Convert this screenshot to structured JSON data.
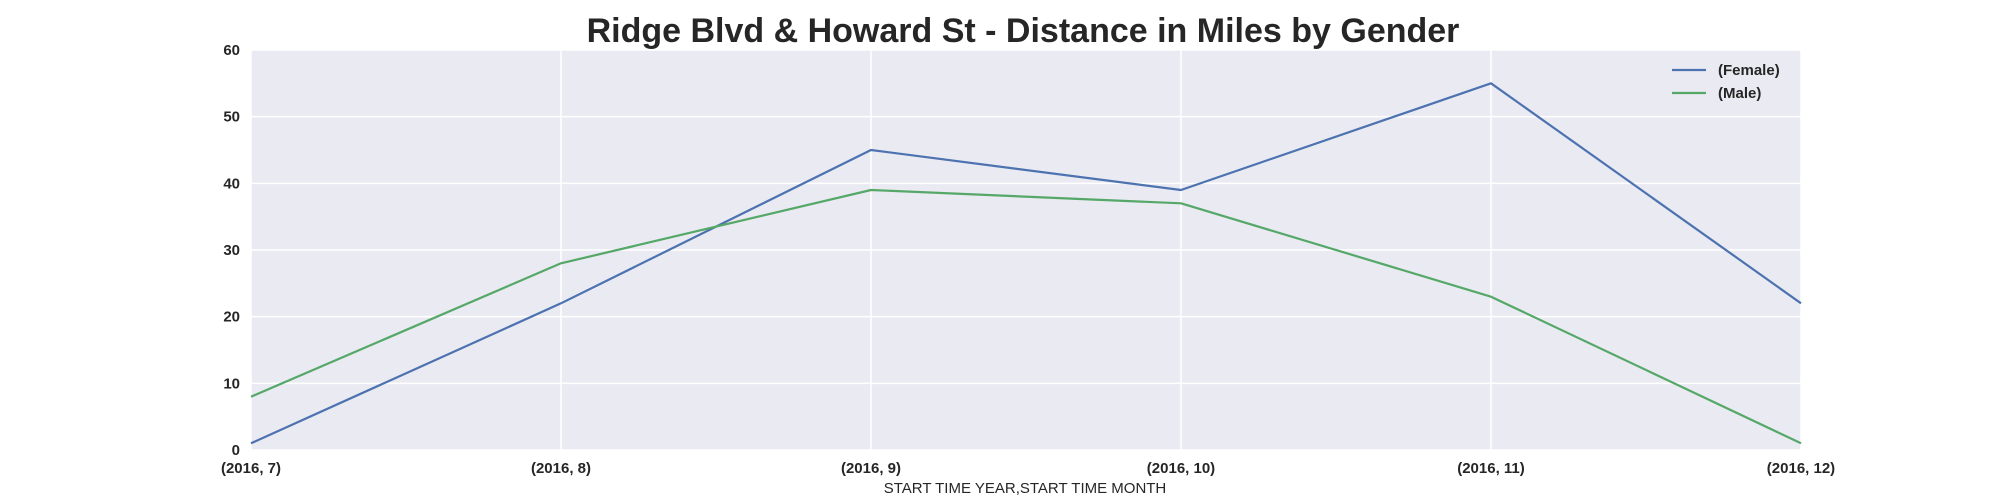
{
  "chart_data": {
    "type": "line",
    "title": "Ridge Blvd & Howard St - Distance in Miles by Gender",
    "xlabel": "START TIME YEAR,START TIME MONTH",
    "ylabel": "",
    "categories": [
      "(2016, 7)",
      "(2016, 8)",
      "(2016, 9)",
      "(2016, 10)",
      "(2016, 11)",
      "(2016, 12)"
    ],
    "ylim": [
      0,
      60
    ],
    "yticks": [
      0,
      10,
      20,
      30,
      40,
      50,
      60
    ],
    "grid": true,
    "legend_position": "top-right",
    "series": [
      {
        "name": "(Female)",
        "color": "#4c72b0",
        "values": [
          1,
          22,
          45,
          39,
          55,
          22
        ]
      },
      {
        "name": "(Male)",
        "color": "#55a868",
        "values": [
          8,
          28,
          39,
          37,
          23,
          1
        ]
      }
    ]
  },
  "colors": {
    "plot_background": "#eaeaf2",
    "grid": "#ffffff",
    "text": "#262626"
  }
}
